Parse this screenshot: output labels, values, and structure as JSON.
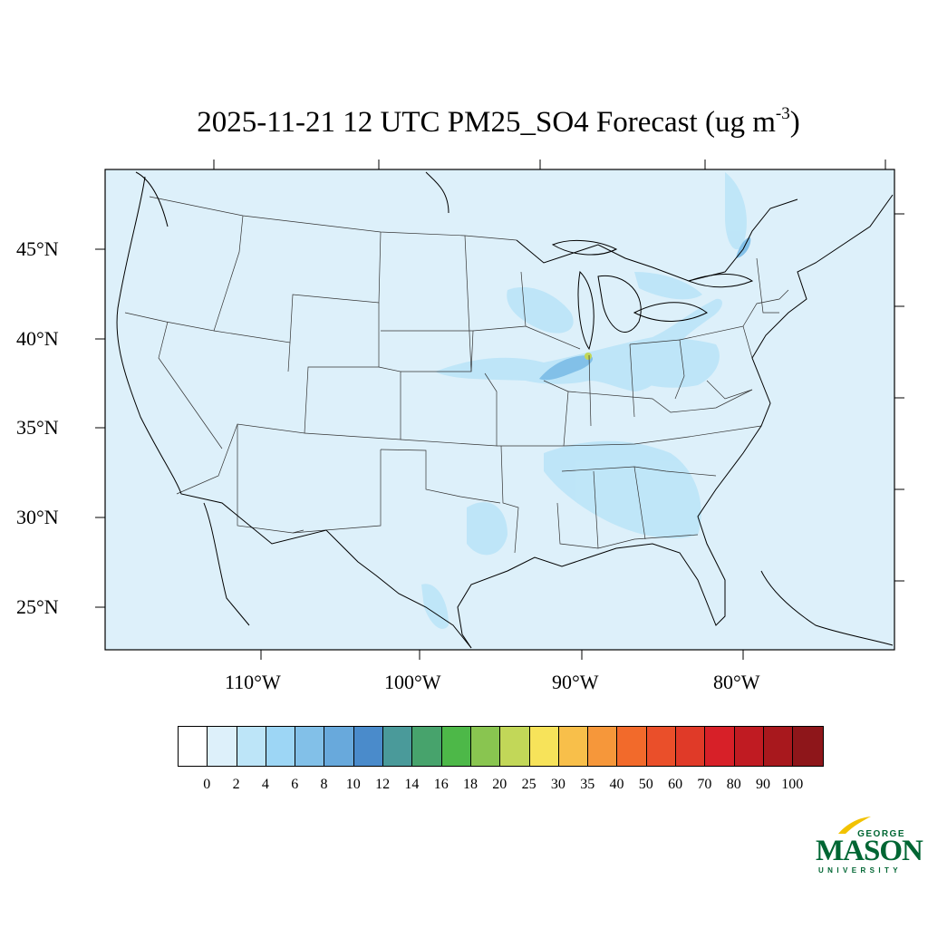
{
  "title": {
    "main": "2025-11-21 12 UTC PM25_SO4 Forecast (ug m",
    "superscript": "-3",
    "close": ")"
  },
  "map": {
    "background_color": "#ddf0fa",
    "latitude_labels": [
      "45°N",
      "40°N",
      "35°N",
      "30°N",
      "25°N"
    ],
    "longitude_labels": [
      "110°W",
      "100°W",
      "90°W",
      "80°W"
    ]
  },
  "colorbar": {
    "colors": [
      "#ffffff",
      "#ddf0fa",
      "#bde5f8",
      "#9dd6f5",
      "#82c0e8",
      "#68a9dc",
      "#4a8bcb",
      "#4a9a9a",
      "#47a36c",
      "#4db848",
      "#89c550",
      "#c2d758",
      "#f7e35a",
      "#f8bf4a",
      "#f6973a",
      "#f26a2b",
      "#ea4f2a",
      "#e03a28",
      "#d72028",
      "#c01b22",
      "#a8181d",
      "#8e161a"
    ],
    "labels": [
      "0",
      "2",
      "4",
      "6",
      "8",
      "10",
      "12",
      "14",
      "16",
      "18",
      "20",
      "25",
      "30",
      "35",
      "40",
      "50",
      "60",
      "70",
      "80",
      "90",
      "100"
    ]
  },
  "logo": {
    "line1": "GEORGE",
    "line2": "MASON",
    "line3": "UNIVERSITY",
    "color": "#006633",
    "accent": "#f2c200"
  }
}
